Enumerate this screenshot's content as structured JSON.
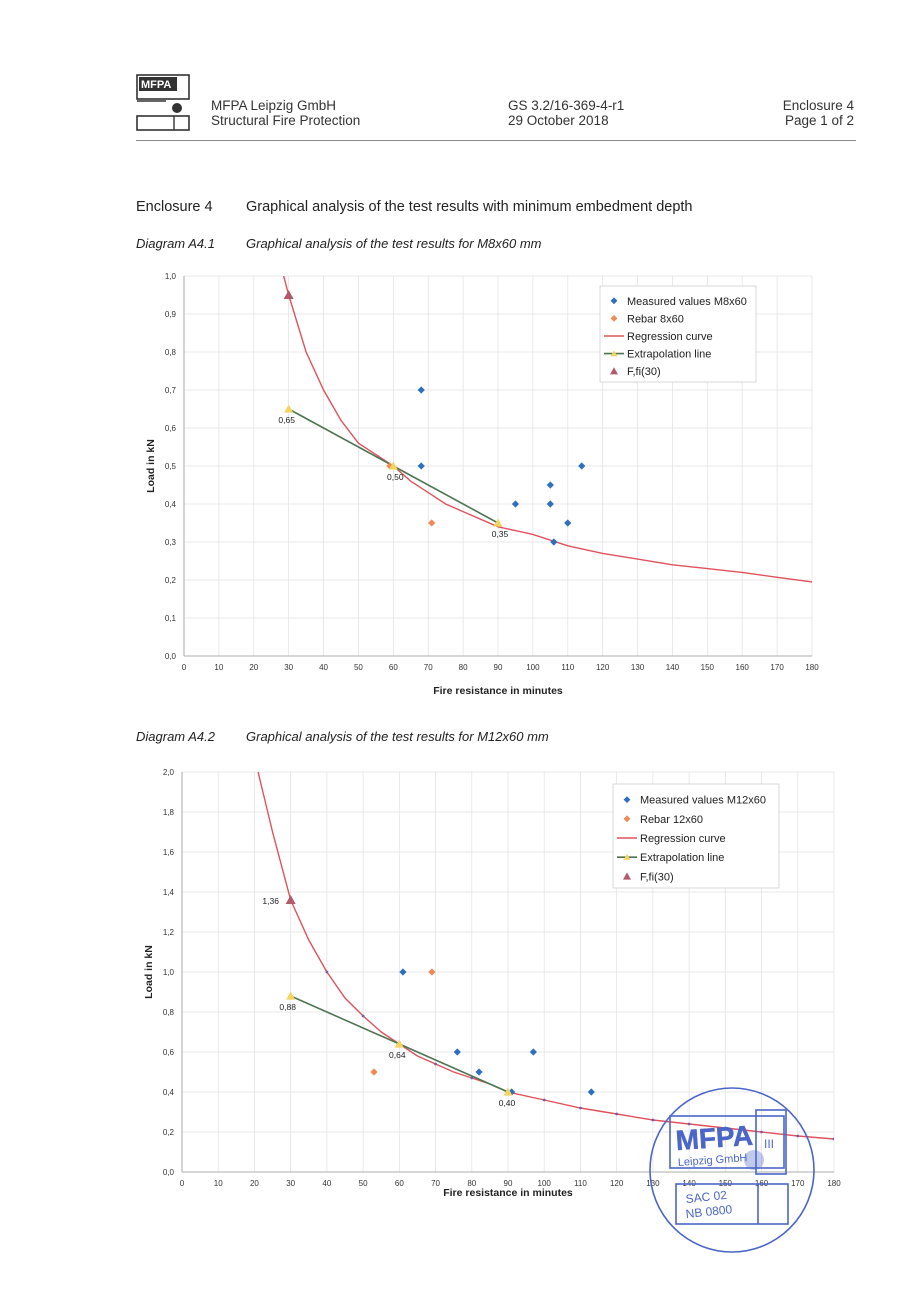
{
  "header": {
    "company": "MFPA Leipzig GmbH",
    "department": "Structural Fire Protection",
    "report_no": "GS 3.2/16-369-4-r1",
    "date": "29 October 2018",
    "enclosure": "Enclosure 4",
    "page": "Page 1 of 2"
  },
  "logo": {
    "text": "MFPA"
  },
  "enclosure_title": {
    "label": "Enclosure 4",
    "text": "Graphical analysis of the test results with minimum embedment depth"
  },
  "diagram1": {
    "label": "Diagram A4.1",
    "text": "Graphical analysis of the test results for M8x60 mm"
  },
  "diagram2": {
    "label": "Diagram A4.2",
    "text": "Graphical analysis of the test results for M12x60 mm"
  },
  "stamp": {
    "name": "MFPA",
    "city": "Leipzig GmbH",
    "roman": "III",
    "code1": "SAC 02",
    "code2": "NB 0800"
  },
  "chart_data": [
    {
      "type": "scatter",
      "xlabel": "Fire resistance in minutes",
      "ylabel": "Load in kN",
      "xlim": [
        0,
        180
      ],
      "ylim": [
        0,
        1.0
      ],
      "xticks": [
        0,
        10,
        20,
        30,
        40,
        50,
        60,
        70,
        80,
        90,
        100,
        110,
        120,
        130,
        140,
        150,
        160,
        170,
        180
      ],
      "xtick_labels": [
        "0",
        "10",
        "20",
        "30",
        "40",
        "50",
        "60",
        "70",
        "80",
        "90",
        "100",
        "110",
        "120",
        "130",
        "140",
        "150",
        "160",
        "170",
        "180"
      ],
      "yticks": [
        0,
        0.1,
        0.2,
        0.3,
        0.4,
        0.5,
        0.6,
        0.7,
        0.8,
        0.9,
        1.0
      ],
      "ytick_labels": [
        "0,0",
        "0,1",
        "0,2",
        "0,3",
        "0,4",
        "0,5",
        "0,6",
        "0,7",
        "0,8",
        "0,9",
        "1,0"
      ],
      "grid": true,
      "legend_position": "top-right",
      "legend": [
        "Measured values M8x60",
        "Rebar 8x60",
        "Regression curve",
        "Extrapolation line",
        "F,fi(30)"
      ],
      "measured": {
        "x": [
          68,
          68,
          95,
          105,
          105,
          110,
          114,
          106
        ],
        "y": [
          0.7,
          0.5,
          0.4,
          0.45,
          0.4,
          0.35,
          0.5,
          0.3
        ]
      },
      "rebar": {
        "x": [
          59,
          71
        ],
        "y": [
          0.5,
          0.35
        ]
      },
      "regression": {
        "x": [
          28,
          30,
          35,
          40,
          45,
          50,
          55,
          60,
          65,
          70,
          75,
          80,
          85,
          90,
          95,
          100,
          110,
          120,
          130,
          140,
          150,
          160,
          170,
          180
        ],
        "y": [
          1.02,
          0.95,
          0.8,
          0.7,
          0.62,
          0.56,
          0.53,
          0.5,
          0.46,
          0.43,
          0.4,
          0.38,
          0.36,
          0.34,
          0.33,
          0.32,
          0.29,
          0.27,
          0.255,
          0.24,
          0.23,
          0.22,
          0.207,
          0.195
        ]
      },
      "extrapolation": {
        "x": [
          30,
          60,
          90
        ],
        "y": [
          0.65,
          0.5,
          0.35
        ]
      },
      "ffi30": {
        "x": [
          30
        ],
        "y": [
          0.95
        ]
      },
      "annotations": [
        {
          "x": 30,
          "y": 0.65,
          "text": "0,65"
        },
        {
          "x": 60,
          "y": 0.5,
          "text": "0,50"
        },
        {
          "x": 90,
          "y": 0.35,
          "text": "0,35"
        }
      ]
    },
    {
      "type": "scatter",
      "xlabel": "Fire resistance in minutes",
      "ylabel": "Load in kN",
      "xlim": [
        0,
        180
      ],
      "ylim": [
        0,
        2.0
      ],
      "xticks": [
        0,
        10,
        20,
        30,
        40,
        50,
        60,
        70,
        80,
        90,
        100,
        110,
        120,
        130,
        140,
        150,
        160,
        170,
        180
      ],
      "xtick_labels": [
        "0",
        "10",
        "20",
        "30",
        "40",
        "50",
        "60",
        "70",
        "80",
        "90",
        "100",
        "110",
        "120",
        "130",
        "140",
        "150",
        "160",
        "170",
        "180"
      ],
      "yticks": [
        0,
        0.2,
        0.4,
        0.6,
        0.8,
        1.0,
        1.2,
        1.4,
        1.6,
        1.8,
        2.0
      ],
      "ytick_labels": [
        "0,0",
        "0,2",
        "0,4",
        "0,6",
        "0,8",
        "1,0",
        "1,2",
        "1,4",
        "1,6",
        "1,8",
        "2,0"
      ],
      "grid": true,
      "legend_position": "top-right",
      "legend": [
        "Measured values M12x60",
        "Rebar 12x60",
        "Regression curve",
        "Extrapolation line",
        "F,fi(30)"
      ],
      "measured": {
        "x": [
          61,
          76,
          82,
          91,
          97,
          113
        ],
        "y": [
          1.0,
          0.6,
          0.5,
          0.4,
          0.6,
          0.4
        ]
      },
      "rebar": {
        "x": [
          53,
          69
        ],
        "y": [
          0.5,
          1.0
        ]
      },
      "regression": {
        "x": [
          21,
          25,
          30,
          35,
          40,
          45,
          50,
          55,
          60,
          65,
          70,
          75,
          80,
          85,
          90,
          100,
          110,
          120,
          130,
          140,
          150,
          160,
          170,
          180
        ],
        "y": [
          2.0,
          1.7,
          1.36,
          1.16,
          1.0,
          0.87,
          0.78,
          0.7,
          0.64,
          0.58,
          0.54,
          0.5,
          0.47,
          0.44,
          0.4,
          0.36,
          0.32,
          0.29,
          0.26,
          0.24,
          0.22,
          0.2,
          0.18,
          0.165
        ]
      },
      "regression_markers_x": [
        40,
        50,
        60,
        70,
        80,
        90,
        100,
        110,
        120,
        130,
        140,
        150,
        160,
        170,
        180
      ],
      "extrapolation": {
        "x": [
          30,
          60,
          90
        ],
        "y": [
          0.88,
          0.64,
          0.4
        ]
      },
      "ffi30": {
        "x": [
          30
        ],
        "y": [
          1.36
        ]
      },
      "annotations": [
        {
          "x": 30,
          "y": 1.36,
          "text": "1,36"
        },
        {
          "x": 30,
          "y": 0.88,
          "text": "0,88"
        },
        {
          "x": 60,
          "y": 0.64,
          "text": "0,64"
        },
        {
          "x": 90,
          "y": 0.4,
          "text": "0,40"
        }
      ]
    }
  ],
  "colors": {
    "measured": "#2e6fc0",
    "rebar": "#f08a55",
    "regression": "#e0525c",
    "extrapolation": "#4e7553",
    "extrap_marker": "#f4d35e",
    "ffi30": "#b25a6a",
    "stamp": "#4b66c8"
  }
}
